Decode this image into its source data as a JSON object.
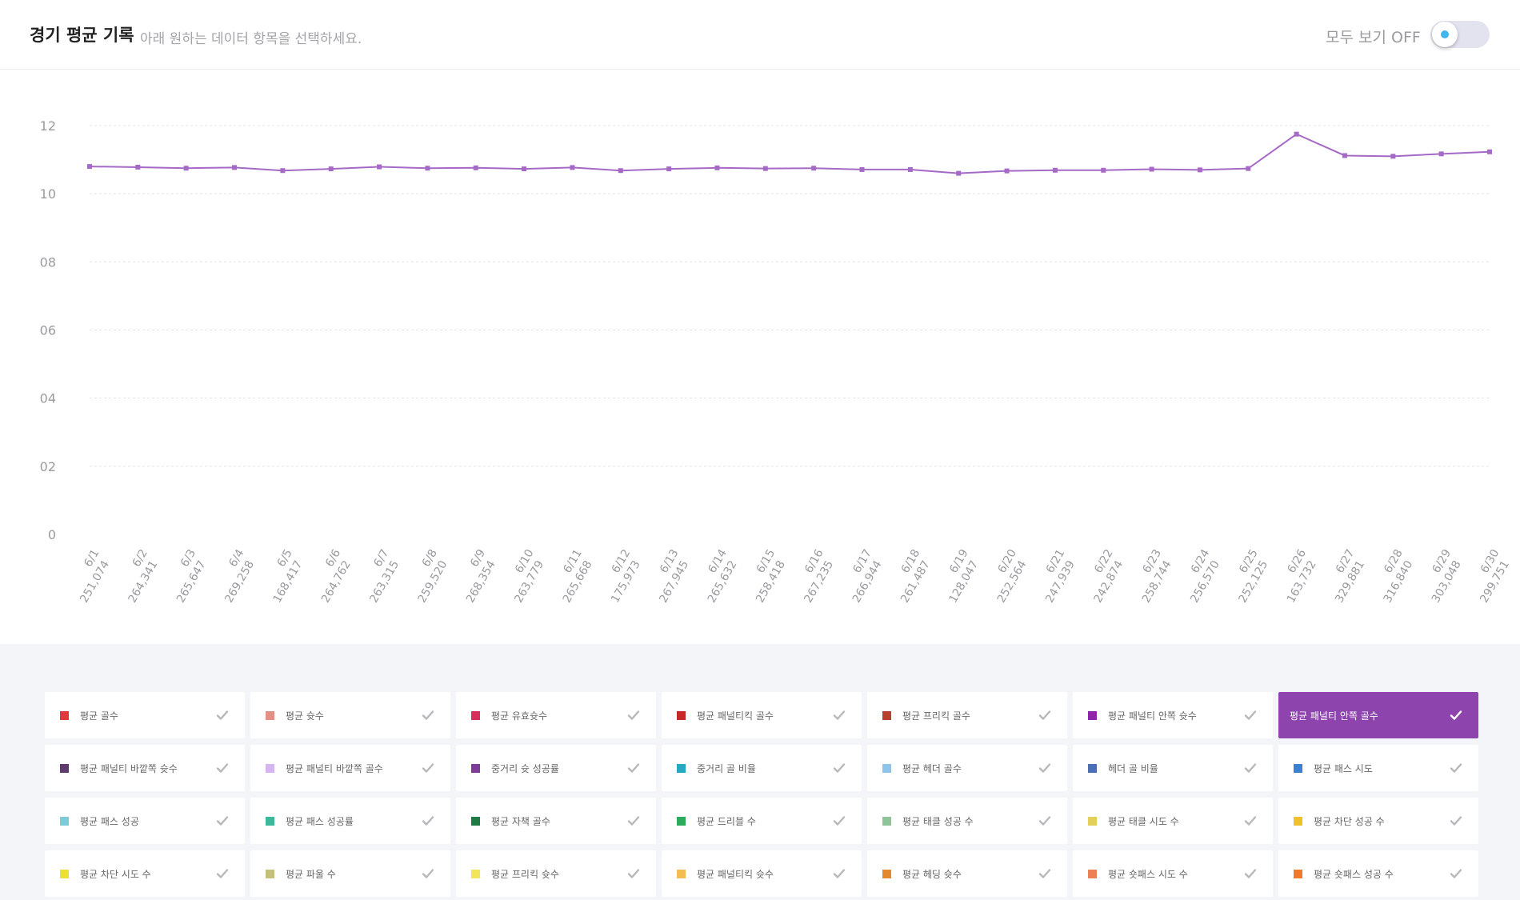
{
  "header": {
    "title": "경기 평균 기록",
    "subtitle": "아래 원하는 데이터 항목을 선택하세요.",
    "toggle_label": "모두 보기 OFF"
  },
  "colors": {
    "accent": "#8e44ad",
    "line": "#a569c6",
    "toggle_dot": "#3fb6ee"
  },
  "chart_data": {
    "type": "line",
    "ylim": [
      0,
      12
    ],
    "yticks": [
      "0",
      "02",
      "04",
      "06",
      "08",
      "10",
      "12"
    ],
    "grid": true,
    "categories": [
      "6/1",
      "6/2",
      "6/3",
      "6/4",
      "6/5",
      "6/6",
      "6/7",
      "6/8",
      "6/9",
      "6/10",
      "6/11",
      "6/12",
      "6/13",
      "6/14",
      "6/15",
      "6/16",
      "6/17",
      "6/18",
      "6/19",
      "6/20",
      "6/21",
      "6/22",
      "6/23",
      "6/24",
      "6/25",
      "6/26",
      "6/27",
      "6/28",
      "6/29",
      "6/30"
    ],
    "category_sublabels": [
      "251,074",
      "264,341",
      "265,647",
      "269,258",
      "168,417",
      "264,762",
      "263,315",
      "259,520",
      "268,354",
      "263,779",
      "265,668",
      "175,973",
      "267,945",
      "265,632",
      "258,418",
      "267,235",
      "266,944",
      "261,487",
      "128,047",
      "252,564",
      "247,939",
      "242,874",
      "258,744",
      "256,570",
      "252,125",
      "163,732",
      "329,881",
      "316,840",
      "303,048",
      "299,751"
    ],
    "series": [
      {
        "values": [
          10.8,
          10.78,
          10.75,
          10.77,
          10.68,
          10.73,
          10.79,
          10.75,
          10.76,
          10.73,
          10.77,
          10.68,
          10.73,
          10.76,
          10.74,
          10.75,
          10.71,
          10.71,
          10.6,
          10.67,
          10.69,
          10.69,
          10.72,
          10.7,
          10.74,
          11.75,
          11.12,
          11.1,
          11.17,
          11.23
        ]
      }
    ]
  },
  "legend": [
    {
      "label": "평균 골수",
      "color": "#e0393e",
      "active": false
    },
    {
      "label": "평균 슛수",
      "color": "#e48f86",
      "active": false
    },
    {
      "label": "평균 유효슛수",
      "color": "#d62f5a",
      "active": false
    },
    {
      "label": "평균 패널티킥 골수",
      "color": "#c62828",
      "active": false
    },
    {
      "label": "평균 프리킥 골수",
      "color": "#b5412e",
      "active": false
    },
    {
      "label": "평균 패널티 안쪽 슛수",
      "color": "#8e24aa",
      "active": false
    },
    {
      "label": "평균 패널티 안쪽 골수",
      "color": "#8e44ad",
      "active": true
    },
    {
      "label": "평균 패널티 바깥쪽 슛수",
      "color": "#5e3a6e",
      "active": false
    },
    {
      "label": "평균 패널티 바깥쪽 골수",
      "color": "#d6b4f0",
      "active": false
    },
    {
      "label": "중거리 슛 성공률",
      "color": "#7d3c98",
      "active": false
    },
    {
      "label": "중거리 골 비율",
      "color": "#26a9c0",
      "active": false
    },
    {
      "label": "평균 헤더 골수",
      "color": "#8ec3ea",
      "active": false
    },
    {
      "label": "헤더 골 비율",
      "color": "#4a6fb5",
      "active": false
    },
    {
      "label": "평균 패스 시도",
      "color": "#3f7fd0",
      "active": false
    },
    {
      "label": "평균 패스 성공",
      "color": "#7ccbd8",
      "active": false
    },
    {
      "label": "평균 패스 성공률",
      "color": "#3db89a",
      "active": false
    },
    {
      "label": "평균 자책 골수",
      "color": "#1e7b45",
      "active": false
    },
    {
      "label": "평균 드리블 수",
      "color": "#2eaa5c",
      "active": false
    },
    {
      "label": "평균 태클 성공 수",
      "color": "#8fc49a",
      "active": false
    },
    {
      "label": "평균 태클 시도 수",
      "color": "#e2d05a",
      "active": false
    },
    {
      "label": "평균 차단 성공 수",
      "color": "#efc12b",
      "active": false
    },
    {
      "label": "평균 차단 시도 수",
      "color": "#ece034",
      "active": false
    },
    {
      "label": "평균 파울 수",
      "color": "#c4c078",
      "active": false
    },
    {
      "label": "평균 프리킥 슛수",
      "color": "#f2e55a",
      "active": false
    },
    {
      "label": "평균 패널티킥 슛수",
      "color": "#f3bd52",
      "active": false
    },
    {
      "label": "평균 헤딩 슛수",
      "color": "#e3882e",
      "active": false
    },
    {
      "label": "평균 숏패스 시도 수",
      "color": "#ee8055",
      "active": false
    },
    {
      "label": "평균 숏패스 성공 수",
      "color": "#f07a2a",
      "active": false
    }
  ]
}
